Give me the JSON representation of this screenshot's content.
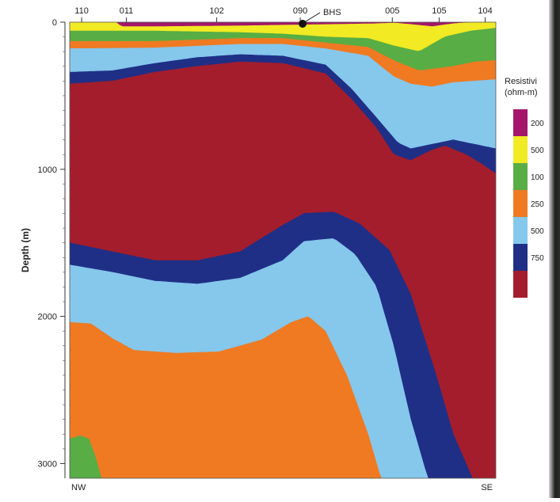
{
  "chart_data": {
    "type": "resistivity-cross-section",
    "ylabel": "Depth (m)",
    "y_ticks": [
      0,
      1000,
      2000,
      3000
    ],
    "ylim": [
      0,
      3100
    ],
    "stations": [
      {
        "label": "110",
        "x": 0.028
      },
      {
        "label": "011",
        "x": 0.133
      },
      {
        "label": "102",
        "x": 0.345
      },
      {
        "label": "090",
        "x": 0.541
      },
      {
        "label": "005",
        "x": 0.757
      },
      {
        "label": "105",
        "x": 0.867
      },
      {
        "label": "104",
        "x": 0.975
      }
    ],
    "borehole": {
      "label": "BHS",
      "station": "090"
    },
    "direction_left": "NW",
    "direction_right": "SE",
    "legend": {
      "title_line1": "Resistivi",
      "title_line2": "(ohm-m)",
      "items": [
        {
          "label": "200",
          "color": "#a3166a"
        },
        {
          "label": "500",
          "color": "#f2ea22"
        },
        {
          "label": "100",
          "color": "#58ad45"
        },
        {
          "label": "250",
          "color": "#ef7a22"
        },
        {
          "label": "500",
          "color": "#86c7ec"
        },
        {
          "label": "750",
          "color": "#1f2f86"
        },
        {
          "label": "",
          "color": "#a41d2c"
        }
      ]
    },
    "layers": [
      {
        "name": "magenta",
        "color": "#a3166a",
        "top": [
          [
            0,
            0
          ],
          [
            1,
            0
          ]
        ],
        "bottom": [
          [
            0,
            0
          ],
          [
            0.11,
            0
          ],
          [
            0.12,
            30
          ],
          [
            0.2,
            30
          ],
          [
            0.4,
            25
          ],
          [
            0.5,
            20
          ],
          [
            0.62,
            15
          ],
          [
            0.72,
            10
          ],
          [
            0.76,
            5
          ],
          [
            0.8,
            15
          ],
          [
            0.85,
            30
          ],
          [
            0.9,
            10
          ],
          [
            0.95,
            0
          ],
          [
            1,
            0
          ]
        ]
      },
      {
        "name": "yellow",
        "color": "#f2ea22",
        "top": "magenta.bottom",
        "bottom": [
          [
            0,
            60
          ],
          [
            0.2,
            60
          ],
          [
            0.4,
            70
          ],
          [
            0.5,
            80
          ],
          [
            0.6,
            100
          ],
          [
            0.7,
            110
          ],
          [
            0.76,
            160
          ],
          [
            0.82,
            200
          ],
          [
            0.88,
            100
          ],
          [
            0.94,
            60
          ],
          [
            1,
            40
          ]
        ]
      },
      {
        "name": "green",
        "color": "#58ad45",
        "top": "yellow.bottom",
        "bottom": [
          [
            0,
            130
          ],
          [
            0.2,
            130
          ],
          [
            0.4,
            110
          ],
          [
            0.5,
            110
          ],
          [
            0.6,
            140
          ],
          [
            0.7,
            170
          ],
          [
            0.76,
            260
          ],
          [
            0.82,
            330
          ],
          [
            0.9,
            300
          ],
          [
            0.95,
            270
          ],
          [
            1,
            260
          ]
        ]
      },
      {
        "name": "orange",
        "color": "#ef7a22",
        "top": "green.bottom",
        "bottom": [
          [
            0,
            180
          ],
          [
            0.2,
            175
          ],
          [
            0.4,
            150
          ],
          [
            0.5,
            150
          ],
          [
            0.6,
            180
          ],
          [
            0.7,
            230
          ],
          [
            0.76,
            370
          ],
          [
            0.8,
            420
          ],
          [
            0.85,
            440
          ],
          [
            0.9,
            410
          ],
          [
            0.95,
            400
          ],
          [
            1,
            390
          ]
        ]
      },
      {
        "name": "lightblue",
        "color": "#86c7ec",
        "top": "orange.bottom",
        "bottom": [
          [
            0,
            340
          ],
          [
            0.1,
            330
          ],
          [
            0.2,
            280
          ],
          [
            0.3,
            240
          ],
          [
            0.4,
            220
          ],
          [
            0.5,
            230
          ],
          [
            0.6,
            290
          ],
          [
            0.66,
            450
          ],
          [
            0.72,
            650
          ],
          [
            0.77,
            820
          ],
          [
            0.8,
            860
          ],
          [
            0.85,
            830
          ],
          [
            0.9,
            800
          ],
          [
            0.95,
            830
          ],
          [
            1,
            860
          ]
        ]
      },
      {
        "name": "darkblue",
        "color": "#1f2f86",
        "top": "lightblue.bottom",
        "bottom": [
          [
            0,
            420
          ],
          [
            0.1,
            400
          ],
          [
            0.2,
            340
          ],
          [
            0.3,
            300
          ],
          [
            0.4,
            270
          ],
          [
            0.5,
            280
          ],
          [
            0.6,
            350
          ],
          [
            0.66,
            520
          ],
          [
            0.72,
            720
          ],
          [
            0.76,
            900
          ],
          [
            0.8,
            940
          ],
          [
            0.85,
            870
          ],
          [
            0.88,
            840
          ],
          [
            0.93,
            900
          ],
          [
            0.97,
            970
          ],
          [
            1,
            1030
          ]
        ]
      },
      {
        "name": "darkred",
        "color": "#a41d2c",
        "top": "darkblue.bottom",
        "bottom": [
          [
            0,
            1500
          ],
          [
            0.1,
            1560
          ],
          [
            0.2,
            1620
          ],
          [
            0.3,
            1620
          ],
          [
            0.4,
            1560
          ],
          [
            0.5,
            1380
          ],
          [
            0.55,
            1300
          ],
          [
            0.62,
            1290
          ],
          [
            0.68,
            1370
          ],
          [
            0.75,
            1550
          ],
          [
            0.8,
            1850
          ],
          [
            0.86,
            2400
          ],
          [
            0.9,
            2800
          ],
          [
            0.93,
            3000
          ],
          [
            0.96,
            3200
          ],
          [
            1,
            3200
          ]
        ]
      },
      {
        "name": "darkblue-deep",
        "color": "#1f2f86",
        "top": "darkred.bottom",
        "bottom": [
          [
            0,
            1650
          ],
          [
            0.1,
            1700
          ],
          [
            0.2,
            1760
          ],
          [
            0.3,
            1780
          ],
          [
            0.4,
            1740
          ],
          [
            0.5,
            1620
          ],
          [
            0.55,
            1490
          ],
          [
            0.62,
            1470
          ],
          [
            0.67,
            1580
          ],
          [
            0.72,
            1800
          ],
          [
            0.76,
            2200
          ],
          [
            0.8,
            2700
          ],
          [
            0.84,
            3100
          ],
          [
            0.87,
            3200
          ],
          [
            1,
            3200
          ]
        ]
      },
      {
        "name": "lightblue-deep",
        "color": "#86c7ec",
        "top": "darkblue-deep.bottom",
        "bottom": [
          [
            0,
            2040
          ],
          [
            0.05,
            2050
          ],
          [
            0.1,
            2150
          ],
          [
            0.15,
            2230
          ],
          [
            0.25,
            2250
          ],
          [
            0.35,
            2240
          ],
          [
            0.45,
            2160
          ],
          [
            0.52,
            2040
          ],
          [
            0.56,
            2000
          ],
          [
            0.6,
            2100
          ],
          [
            0.65,
            2400
          ],
          [
            0.7,
            2800
          ],
          [
            0.73,
            3100
          ],
          [
            0.75,
            3200
          ],
          [
            1,
            3200
          ]
        ]
      },
      {
        "name": "orange-deep",
        "color": "#ef7a22",
        "top": "lightblue-deep.bottom",
        "bottom": [
          [
            0,
            3200
          ],
          [
            1,
            3200
          ]
        ]
      }
    ],
    "patches": [
      {
        "name": "green-deep",
        "color": "#58ad45",
        "points": [
          [
            0,
            2830
          ],
          [
            0.025,
            2810
          ],
          [
            0.045,
            2830
          ],
          [
            0.06,
            2950
          ],
          [
            0.075,
            3100
          ],
          [
            0,
            3100
          ]
        ]
      }
    ]
  }
}
